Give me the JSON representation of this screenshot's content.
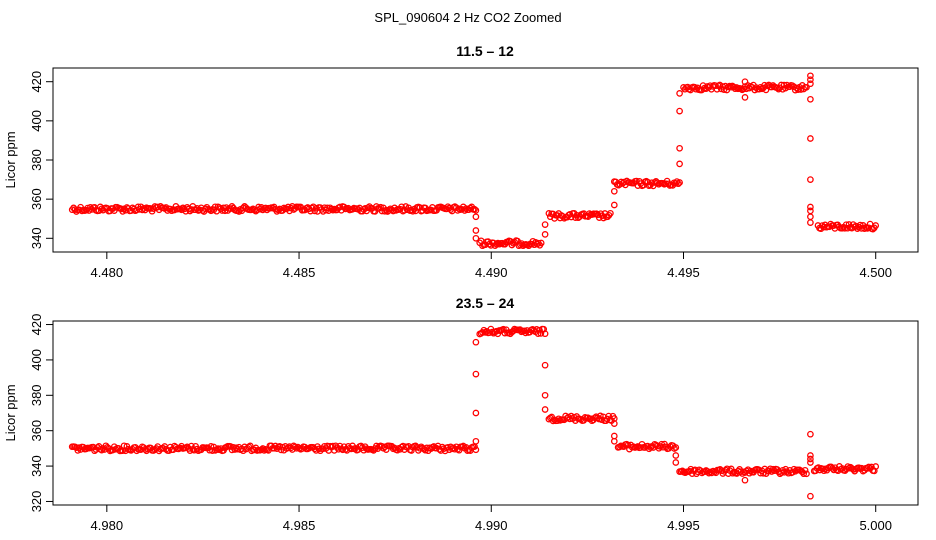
{
  "figure_title": "SPL_090604  2 Hz CO2 Zoomed",
  "chart_data": [
    {
      "type": "scatter",
      "title": "11.5 – 12",
      "xlabel": "",
      "ylabel": "Licor ppm",
      "xlim": [
        4.4786,
        4.5011
      ],
      "ylim": [
        333,
        427
      ],
      "xticks": [
        4.48,
        4.485,
        4.49,
        4.495,
        4.5
      ],
      "xtick_labels": [
        "4.480",
        "4.485",
        "4.490",
        "4.495",
        "4.500"
      ],
      "yticks": [
        340,
        360,
        380,
        400,
        420
      ],
      "ytick_labels": [
        "340",
        "360",
        "380",
        "400",
        "420"
      ],
      "marker": "open-circle",
      "color": "#ff0000",
      "grid": false,
      "segments": [
        {
          "x": [
            4.4791,
            4.4896
          ],
          "y": 355
        },
        {
          "x": [
            4.4897,
            4.4913
          ],
          "y": 337.5
        },
        {
          "x": [
            4.4915,
            4.4931
          ],
          "y": 351.5
        },
        {
          "x": [
            4.4932,
            4.4949
          ],
          "y": 368
        },
        {
          "x": [
            4.495,
            4.4982
          ],
          "y": 417
        },
        {
          "x": [
            4.4985,
            4.5
          ],
          "y": 346
        }
      ],
      "transitions": [
        {
          "x": 4.4896,
          "y": [
            351,
            344,
            340
          ]
        },
        {
          "x": 4.4914,
          "y": [
            342,
            347
          ]
        },
        {
          "x": 4.4932,
          "y": [
            357,
            364
          ]
        },
        {
          "x": 4.4949,
          "y": [
            378,
            386,
            405,
            414
          ]
        },
        {
          "x": 4.4966,
          "y": [
            412,
            420
          ]
        },
        {
          "x": 4.4983,
          "y": [
            423,
            421,
            419,
            411,
            391,
            370,
            356,
            354,
            351,
            348
          ]
        }
      ]
    },
    {
      "type": "scatter",
      "title": "23.5 – 24",
      "xlabel": "",
      "ylabel": "Licor ppm",
      "xlim": [
        4.9786,
        5.0011
      ],
      "ylim": [
        318,
        422
      ],
      "xticks": [
        4.98,
        4.985,
        4.99,
        4.995,
        5.0
      ],
      "xtick_labels": [
        "4.980",
        "4.985",
        "4.990",
        "4.995",
        "5.000"
      ],
      "yticks": [
        320,
        340,
        360,
        380,
        400,
        420
      ],
      "ytick_labels": [
        "320",
        "340",
        "360",
        "380",
        "400",
        "420"
      ],
      "marker": "open-circle",
      "color": "#ff0000",
      "grid": false,
      "segments": [
        {
          "x": [
            4.9791,
            4.9896
          ],
          "y": 350
        },
        {
          "x": [
            4.9897,
            4.9914
          ],
          "y": 416
        },
        {
          "x": [
            4.9915,
            4.9932
          ],
          "y": 367
        },
        {
          "x": [
            4.9933,
            4.9948
          ],
          "y": 351
        },
        {
          "x": [
            4.9949,
            4.9982
          ],
          "y": 337
        },
        {
          "x": [
            4.9984,
            5.0
          ],
          "y": 338.5
        }
      ],
      "transitions": [
        {
          "x": 4.9896,
          "y": [
            354,
            370,
            392,
            410
          ]
        },
        {
          "x": 4.9914,
          "y": [
            397,
            380,
            372
          ]
        },
        {
          "x": 4.9932,
          "y": [
            364,
            357,
            354
          ]
        },
        {
          "x": 4.9948,
          "y": [
            346,
            342
          ]
        },
        {
          "x": 4.9966,
          "y": [
            332
          ]
        },
        {
          "x": 4.9983,
          "y": [
            358,
            346,
            344,
            342,
            323
          ]
        }
      ]
    }
  ]
}
